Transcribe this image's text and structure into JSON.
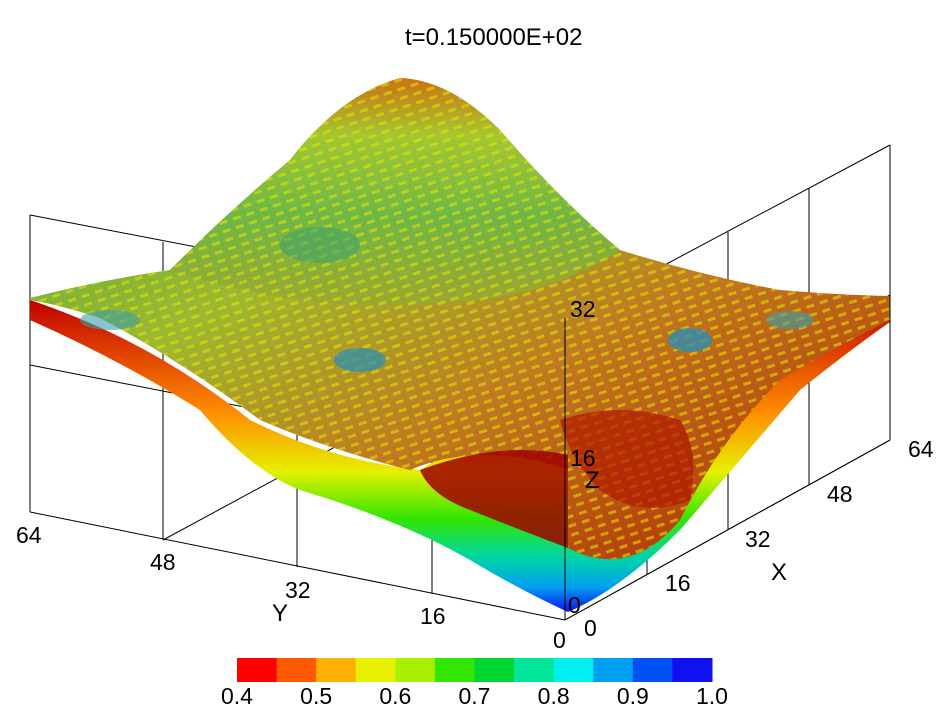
{
  "chart_data": {
    "type": "surface-3d",
    "title": "t=0.150000E+02",
    "xlabel": "X",
    "ylabel": "Y",
    "zlabel": "Z",
    "x_ticks": [
      "0",
      "16",
      "32",
      "48",
      "64"
    ],
    "y_ticks": [
      "0",
      "16",
      "32",
      "48",
      "64"
    ],
    "z_ticks": [
      "0",
      "16",
      "32"
    ],
    "xlim": [
      0,
      64
    ],
    "ylim": [
      0,
      64
    ],
    "zlim": [
      0,
      32
    ],
    "colorbar": {
      "ticks": [
        "0.4",
        "0.5",
        "0.6",
        "0.7",
        "0.8",
        "0.9",
        "1.0"
      ],
      "range": [
        0.4,
        1.0
      ],
      "colors": [
        "#ff0000",
        "#ff5a00",
        "#ffb000",
        "#e6f000",
        "#a8f000",
        "#33e600",
        "#00d633",
        "#00e69a",
        "#00f0f0",
        "#00a0f0",
        "#0050f5",
        "#1010f0"
      ]
    },
    "grid": true
  }
}
